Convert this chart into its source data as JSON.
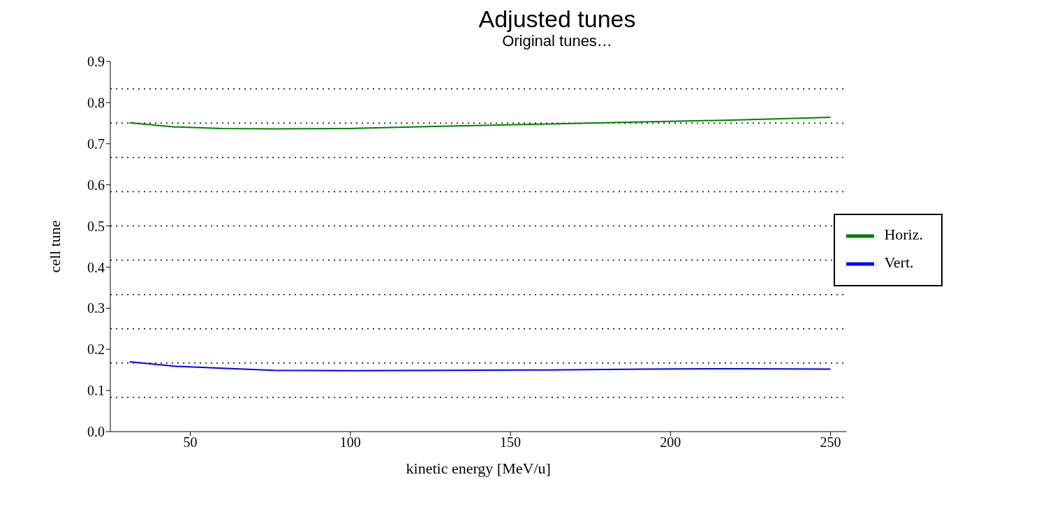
{
  "chart_data": {
    "type": "line",
    "title": "Adjusted tunes",
    "subtitle": "Original tunes…",
    "xlabel": "kinetic energy [MeV/u]",
    "ylabel": "cell tune",
    "x": [
      31,
      45,
      60,
      76,
      100,
      131,
      162,
      192,
      223,
      250
    ],
    "series": [
      {
        "name": "Horiz.",
        "color": "#008000",
        "values": [
          0.751,
          0.741,
          0.737,
          0.736,
          0.737,
          0.743,
          0.748,
          0.753,
          0.758,
          0.764
        ]
      },
      {
        "name": "Vert.",
        "color": "#0000ff",
        "values": [
          0.17,
          0.159,
          0.154,
          0.149,
          0.148,
          0.149,
          0.15,
          0.152,
          0.153,
          0.152
        ]
      }
    ],
    "xlim": [
      25,
      255
    ],
    "xticks": [
      50,
      100,
      150,
      200,
      250
    ],
    "ylim": [
      0,
      0.9
    ],
    "yticks": [
      {
        "value": 0,
        "label": "0.0"
      },
      0.1,
      0.2,
      0.3,
      0.4,
      0.5,
      0.6,
      0.7,
      0.8,
      0.9
    ],
    "ref_lines": [
      {
        "axis": "y",
        "value": 0.0833,
        "line_style": "dotted",
        "color": "#000000"
      },
      {
        "axis": "y",
        "value": 0.1667,
        "line_style": "dotted",
        "color": "#000000"
      },
      {
        "axis": "y",
        "value": 0.25,
        "line_style": "dotted",
        "color": "#000000"
      },
      {
        "axis": "y",
        "value": 0.3333,
        "line_style": "dotted",
        "color": "#000000"
      },
      {
        "axis": "y",
        "value": 0.4167,
        "line_style": "dotted",
        "color": "#000000"
      },
      {
        "axis": "y",
        "value": 0.5,
        "line_style": "dotted",
        "color": "#000000"
      },
      {
        "axis": "y",
        "value": 0.5833,
        "line_style": "dotted",
        "color": "#000000"
      },
      {
        "axis": "y",
        "value": 0.6667,
        "line_style": "dotted",
        "color": "#000000"
      },
      {
        "axis": "y",
        "value": 0.75,
        "line_style": "dotted",
        "color": "#000000"
      },
      {
        "axis": "y",
        "value": 0.8333,
        "line_style": "dotted",
        "color": "#000000"
      }
    ],
    "legend": "right",
    "marker": "none",
    "line_style": "solid",
    "grid": false
  }
}
